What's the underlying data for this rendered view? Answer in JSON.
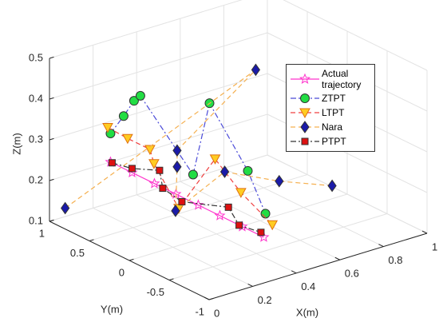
{
  "chart_data": {
    "type": "line3d",
    "xlabel": "X(m)",
    "ylabel": "Y(m)",
    "zlabel": "Z(m)",
    "xlim": [
      0,
      1
    ],
    "xticks": [
      0,
      0.2,
      0.4,
      0.6,
      0.8,
      1
    ],
    "ylim": [
      -1,
      1
    ],
    "yticks": [
      -1,
      -0.5,
      0,
      0.5,
      1
    ],
    "zlim": [
      0.1,
      0.5
    ],
    "zticks": [
      0.1,
      0.2,
      0.3,
      0.4,
      0.5
    ],
    "grid": true,
    "legend": "upper right",
    "series": [
      {
        "name": "Actual trajectory",
        "color": "#ff33cc",
        "marker": "star",
        "marker_color": "#ff99e6",
        "dash": "none",
        "x": [
          0.28,
          0.28,
          0.28,
          0.28,
          0.28,
          0.28,
          0.28,
          0.28
        ],
        "y": [
          1.0,
          0.73,
          0.45,
          0.18,
          -0.1,
          -0.37,
          -0.65,
          -0.92
        ],
        "z": [
          0.2,
          0.2,
          0.2,
          0.2,
          0.2,
          0.2,
          0.2,
          0.2
        ]
      },
      {
        "name": "ZTPT",
        "color": "#4a4ad8",
        "marker": "circle",
        "marker_color": "#22dd44",
        "dash": "dashdot",
        "x": [
          0.28,
          0.3,
          0.3,
          0.3,
          0.3,
          0.5,
          0.5,
          0.35
        ],
        "y": [
          1.0,
          0.89,
          0.76,
          0.68,
          0.02,
          0.36,
          -0.12,
          -0.75
        ],
        "z": [
          0.27,
          0.32,
          0.37,
          0.39,
          0.26,
          0.37,
          0.25,
          0.23
        ]
      },
      {
        "name": "LTPT",
        "color": "#f04040",
        "marker": "triangle",
        "marker_color": "#ffcc22",
        "dash": "dash",
        "x": [
          0.26,
          0.3,
          0.3,
          0.3,
          0.3,
          0.5,
          0.45,
          0.4
        ],
        "y": [
          0.98,
          0.84,
          0.56,
          0.51,
          0.2,
          0.29,
          -0.17,
          -0.7
        ],
        "z": [
          0.29,
          0.27,
          0.27,
          0.24,
          0.16,
          0.24,
          0.21,
          0.19
        ]
      },
      {
        "name": "Nara",
        "color": "#f5b050",
        "marker": "diamond",
        "marker_color": "#1a1aa8",
        "dash": "dash",
        "x": [
          0.05,
          0.8,
          0.3,
          0.3,
          0.3,
          0.5,
          0.6,
          0.7
        ],
        "y": [
          0.94,
          0.6,
          0.22,
          0.22,
          0.24,
          0.17,
          -0.24,
          -0.63
        ],
        "z": [
          0.13,
          0.38,
          0.3,
          0.26,
          0.15,
          0.22,
          0.22,
          0.23
        ]
      },
      {
        "name": "PTPT",
        "color": "#333333",
        "marker": "square",
        "marker_color": "#dd1111",
        "dash": "dashdot",
        "x": [
          0.28,
          0.28,
          0.3,
          0.3,
          0.3,
          0.4,
          0.35,
          0.3
        ],
        "y": [
          0.98,
          0.73,
          0.44,
          0.4,
          0.16,
          -0.15,
          -0.42,
          -0.83
        ],
        "z": [
          0.2,
          0.21,
          0.23,
          0.19,
          0.18,
          0.18,
          0.17,
          0.2
        ]
      }
    ]
  }
}
